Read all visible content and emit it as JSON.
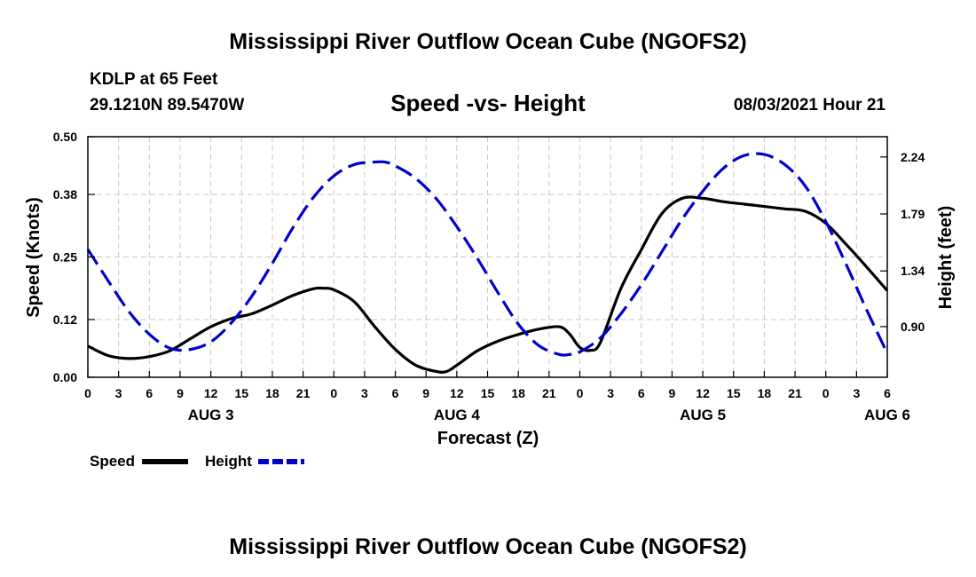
{
  "header": {
    "title": "Mississippi River Outflow Ocean Cube (NGOFS2)",
    "station": "KDLP at 65 Feet",
    "location": "29.1210N  89.5470W",
    "subtitle": "Speed -vs- Height",
    "datetime": "08/03/2021 Hour 21"
  },
  "footer": {
    "title": "Mississippi River Outflow Ocean Cube (NGOFS2)"
  },
  "chart_data": {
    "type": "line",
    "title": "Speed -vs- Height",
    "xlabel": "Forecast (Z)",
    "ylabel": "Speed (Knots)",
    "y2label": "Height (feet)",
    "x_unit": "hours since AUG 3 00Z",
    "xlim": [
      0,
      78
    ],
    "ylim": [
      0.0,
      0.5
    ],
    "y2lim": [
      0.5,
      2.4
    ],
    "yticks": [
      "0.00",
      "0.12",
      "0.25",
      "0.38",
      "0.50"
    ],
    "y2ticks": [
      "0.90",
      "1.34",
      "1.79",
      "2.24"
    ],
    "xtick_labels": [
      "0",
      "3",
      "6",
      "9",
      "12",
      "15",
      "18",
      "21",
      "0",
      "3",
      "6",
      "9",
      "12",
      "15",
      "18",
      "21",
      "0",
      "3",
      "6",
      "9",
      "12",
      "15",
      "18",
      "21",
      "0",
      "3",
      "6"
    ],
    "date_labels": [
      {
        "label": "AUG 3",
        "hour": 12
      },
      {
        "label": "AUG 4",
        "hour": 36
      },
      {
        "label": "AUG 5",
        "hour": 60
      },
      {
        "label": "AUG 6",
        "hour": 78
      }
    ],
    "grid": true,
    "series": [
      {
        "name": "Speed",
        "axis": "left",
        "color": "#000000",
        "style": "solid",
        "x": [
          0,
          2,
          4,
          6,
          8,
          10,
          12,
          14,
          16,
          18,
          20,
          22,
          23,
          24,
          26,
          28,
          30,
          32,
          34,
          35,
          36,
          38,
          40,
          42,
          44,
          46,
          47,
          48,
          49,
          50,
          52,
          54,
          56,
          58,
          60,
          62,
          64,
          66,
          68,
          70,
          72,
          74,
          76,
          78
        ],
        "y": [
          0.065,
          0.045,
          0.039,
          0.043,
          0.055,
          0.08,
          0.105,
          0.122,
          0.132,
          0.15,
          0.17,
          0.184,
          0.185,
          0.182,
          0.157,
          0.105,
          0.058,
          0.025,
          0.012,
          0.012,
          0.025,
          0.055,
          0.075,
          0.089,
          0.1,
          0.105,
          0.09,
          0.062,
          0.056,
          0.072,
          0.184,
          0.265,
          0.34,
          0.372,
          0.372,
          0.365,
          0.36,
          0.355,
          0.35,
          0.345,
          0.32,
          0.276,
          0.229,
          0.18
        ]
      },
      {
        "name": "Height",
        "axis": "right",
        "color": "#0000cc",
        "style": "dashed",
        "x": [
          0,
          2,
          4,
          6,
          8,
          10,
          12,
          14,
          16,
          18,
          20,
          22,
          24,
          26,
          28,
          29,
          30,
          32,
          34,
          36,
          38,
          40,
          42,
          44,
          46,
          47,
          48,
          50,
          52,
          54,
          56,
          58,
          60,
          62,
          64,
          66,
          68,
          70,
          72,
          74,
          76,
          78
        ],
        "y": [
          1.51,
          1.26,
          1.02,
          0.84,
          0.73,
          0.72,
          0.78,
          0.93,
          1.14,
          1.4,
          1.68,
          1.92,
          2.09,
          2.18,
          2.2,
          2.2,
          2.17,
          2.07,
          1.91,
          1.69,
          1.44,
          1.17,
          0.92,
          0.75,
          0.68,
          0.68,
          0.7,
          0.81,
          1.0,
          1.23,
          1.49,
          1.75,
          1.97,
          2.15,
          2.25,
          2.26,
          2.18,
          2.01,
          1.73,
          1.39,
          1.03,
          0.69
        ]
      }
    ]
  },
  "legend": {
    "items": [
      {
        "label": "Speed",
        "color": "#000000",
        "style": "solid"
      },
      {
        "label": "Height",
        "color": "#0000cc",
        "style": "dashed"
      }
    ]
  }
}
